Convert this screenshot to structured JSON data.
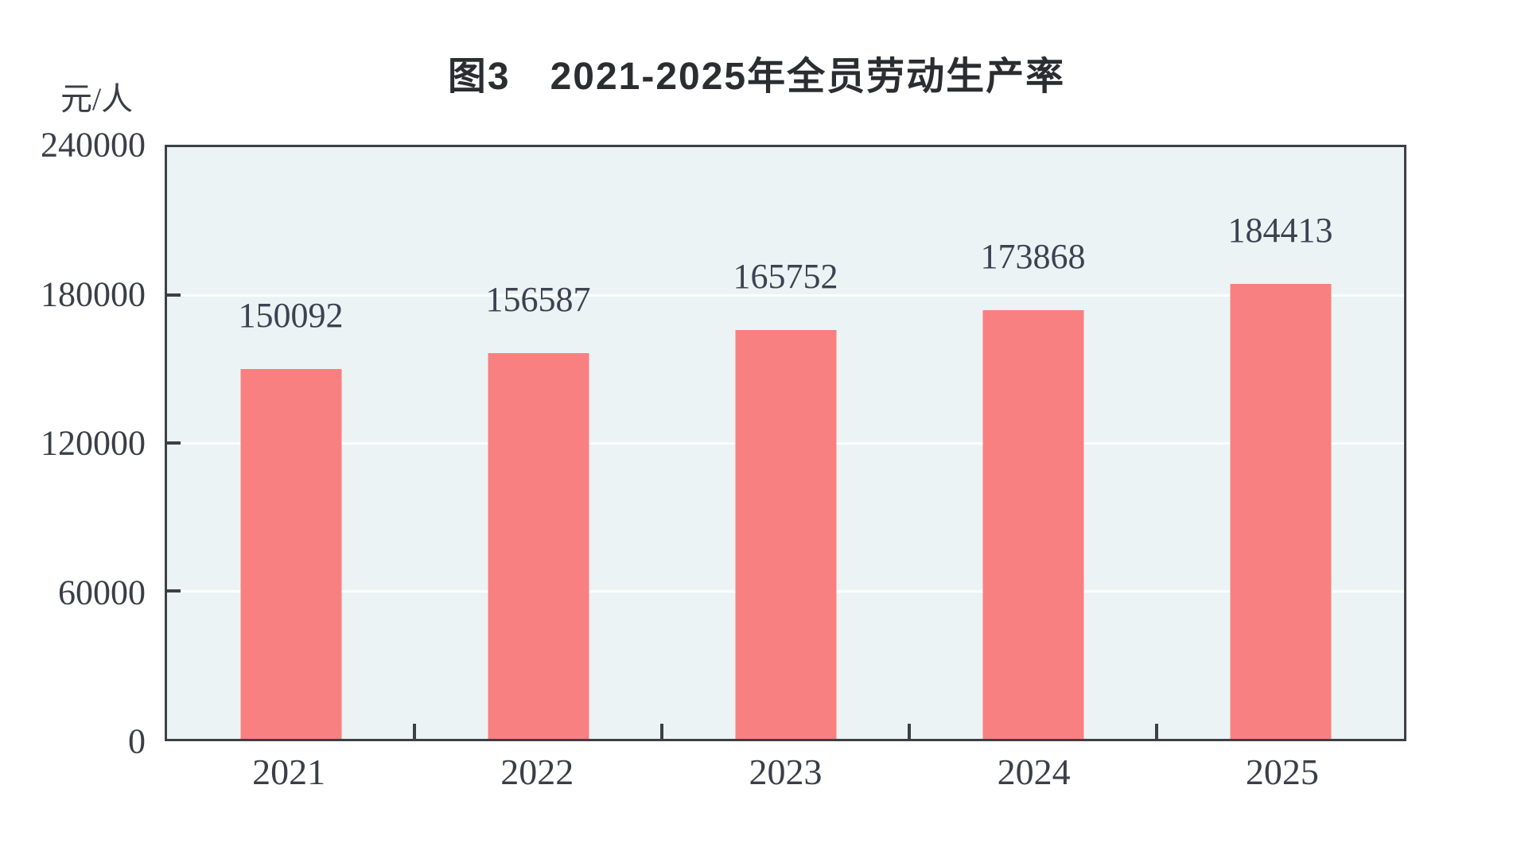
{
  "chart_data": {
    "type": "bar",
    "title": "图3　2021-2025年全员劳动生产率",
    "y_unit_label": "元/人",
    "categories": [
      "2021",
      "2022",
      "2023",
      "2024",
      "2025"
    ],
    "values": [
      150092,
      156587,
      165752,
      173868,
      184413
    ],
    "ylim": [
      0,
      240000
    ],
    "yticks": [
      240000,
      180000,
      120000,
      60000,
      0
    ],
    "grid": "horizontal white gridlines at 60000, 120000, 180000",
    "legend": "none",
    "bar_color": "#f98080",
    "plot_background_color": "#ecf3f5",
    "axis_border_color": "#3d4043"
  }
}
